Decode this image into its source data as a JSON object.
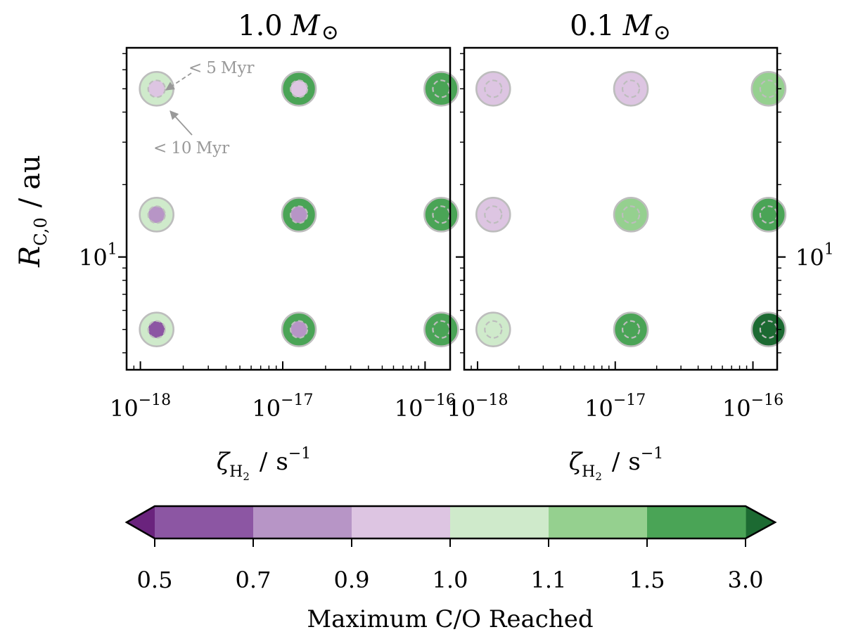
{
  "chart_data": [
    {
      "type": "scatter",
      "panel_title": "1.0",
      "panel_title_unit": "M",
      "xlabel_sym": "ζ",
      "xlabel_sub": "H",
      "xlabel_subsub": "2",
      "xlabel_unit": "s",
      "xlabel_exp": "−1",
      "ylabel_sym": "R",
      "ylabel_sub": "C,0",
      "ylabel_unit": "au",
      "x_scale": "log",
      "y_scale": "log",
      "xlim": [
        8e-19,
        1.5e-16
      ],
      "ylim": [
        3.4,
        74
      ],
      "x_ticks": [
        {
          "value": 1e-18,
          "base": "10",
          "exp": "−18"
        },
        {
          "value": 1e-17,
          "base": "10",
          "exp": "−17"
        },
        {
          "value": 1e-16,
          "base": "10",
          "exp": "−16"
        }
      ],
      "y_ticks": [
        {
          "value": 10,
          "base": "10",
          "exp": "1"
        }
      ],
      "points": [
        {
          "x": 1.3e-18,
          "y": 50,
          "c10": 1.05,
          "c5": 0.95
        },
        {
          "x": 1.3e-17,
          "y": 50,
          "c10": 2.0,
          "c5": 0.95
        },
        {
          "x": 1.3e-16,
          "y": 50,
          "c10": 2.0,
          "c5": 2.0
        },
        {
          "x": 1.3e-18,
          "y": 15,
          "c10": 1.05,
          "c5": 0.8
        },
        {
          "x": 1.3e-17,
          "y": 15,
          "c10": 2.0,
          "c5": 0.8
        },
        {
          "x": 1.3e-16,
          "y": 15,
          "c10": 2.0,
          "c5": 2.0
        },
        {
          "x": 1.3e-18,
          "y": 5,
          "c10": 1.05,
          "c5": 0.6
        },
        {
          "x": 1.3e-17,
          "y": 5,
          "c10": 2.0,
          "c5": 0.8
        },
        {
          "x": 1.3e-16,
          "y": 5,
          "c10": 2.0,
          "c5": 2.0
        }
      ],
      "annotations": [
        {
          "text_pre": "<",
          "text": "5",
          "text_unit": "Myr"
        },
        {
          "text_pre": "<",
          "text": "10",
          "text_unit": "Myr"
        }
      ]
    },
    {
      "type": "scatter",
      "panel_title": "0.1",
      "panel_title_unit": "M",
      "xlabel_sym": "ζ",
      "xlabel_sub": "H",
      "xlabel_subsub": "2",
      "xlabel_unit": "s",
      "xlabel_exp": "−1",
      "x_scale": "log",
      "y_scale": "log",
      "xlim": [
        8e-19,
        1.5e-16
      ],
      "ylim": [
        3.4,
        74
      ],
      "x_ticks": [
        {
          "value": 1e-18,
          "base": "10",
          "exp": "−18"
        },
        {
          "value": 1e-17,
          "base": "10",
          "exp": "−17"
        },
        {
          "value": 1e-16,
          "base": "10",
          "exp": "−16"
        }
      ],
      "y_ticks": [
        {
          "value": 10,
          "base": "10",
          "exp": "1"
        }
      ],
      "points": [
        {
          "x": 1.3e-18,
          "y": 50,
          "c10": 0.95,
          "c5": 0.95
        },
        {
          "x": 1.3e-17,
          "y": 50,
          "c10": 0.95,
          "c5": 0.95
        },
        {
          "x": 1.3e-16,
          "y": 50,
          "c10": 1.3,
          "c5": 1.3
        },
        {
          "x": 1.3e-18,
          "y": 15,
          "c10": 0.95,
          "c5": 0.95
        },
        {
          "x": 1.3e-17,
          "y": 15,
          "c10": 1.3,
          "c5": 1.3
        },
        {
          "x": 1.3e-16,
          "y": 15,
          "c10": 2.0,
          "c5": 2.0
        },
        {
          "x": 1.3e-18,
          "y": 5,
          "c10": 1.05,
          "c5": 1.05
        },
        {
          "x": 1.3e-17,
          "y": 5,
          "c10": 2.0,
          "c5": 2.0
        },
        {
          "x": 1.3e-16,
          "y": 5,
          "c10": 3.5,
          "c5": 3.5
        }
      ]
    }
  ],
  "colorbar": {
    "label": "Maximum C/O Reached",
    "boundaries": [
      "0.5",
      "0.7",
      "0.9",
      "1.0",
      "1.1",
      "1.5",
      "3.0"
    ],
    "colors": [
      "#8c56a3",
      "#b795c6",
      "#ddc5e2",
      "#cfeacb",
      "#95d08f",
      "#4aa456"
    ],
    "under_color": "#6a237d",
    "over_color": "#1c6a32",
    "marker_edge_color": "#bdbdbd"
  }
}
